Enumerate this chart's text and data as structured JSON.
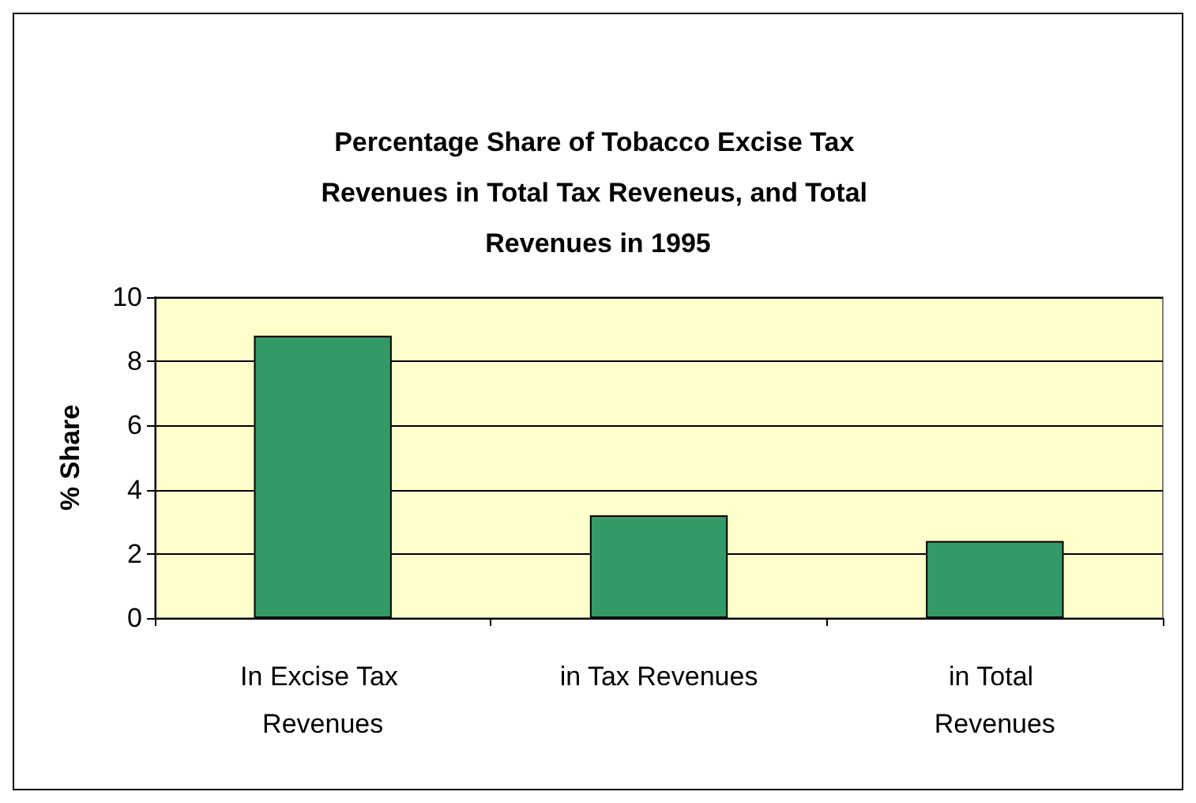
{
  "chart_data": {
    "type": "bar",
    "title": "Percentage Share of Tobacco Excise Tax Revenues in Total Tax Reveneus, and Total Revenues in 1995",
    "ylabel": "% Share",
    "categories": [
      "In Excise Tax Revenues",
      "in Tax Revenues",
      "in Total Revenues"
    ],
    "values": [
      8.8,
      3.2,
      2.4
    ],
    "color": "#339966",
    "ylim": [
      0,
      10
    ],
    "yticks": [
      0,
      2,
      4,
      6,
      8,
      10
    ],
    "grid": "y"
  }
}
